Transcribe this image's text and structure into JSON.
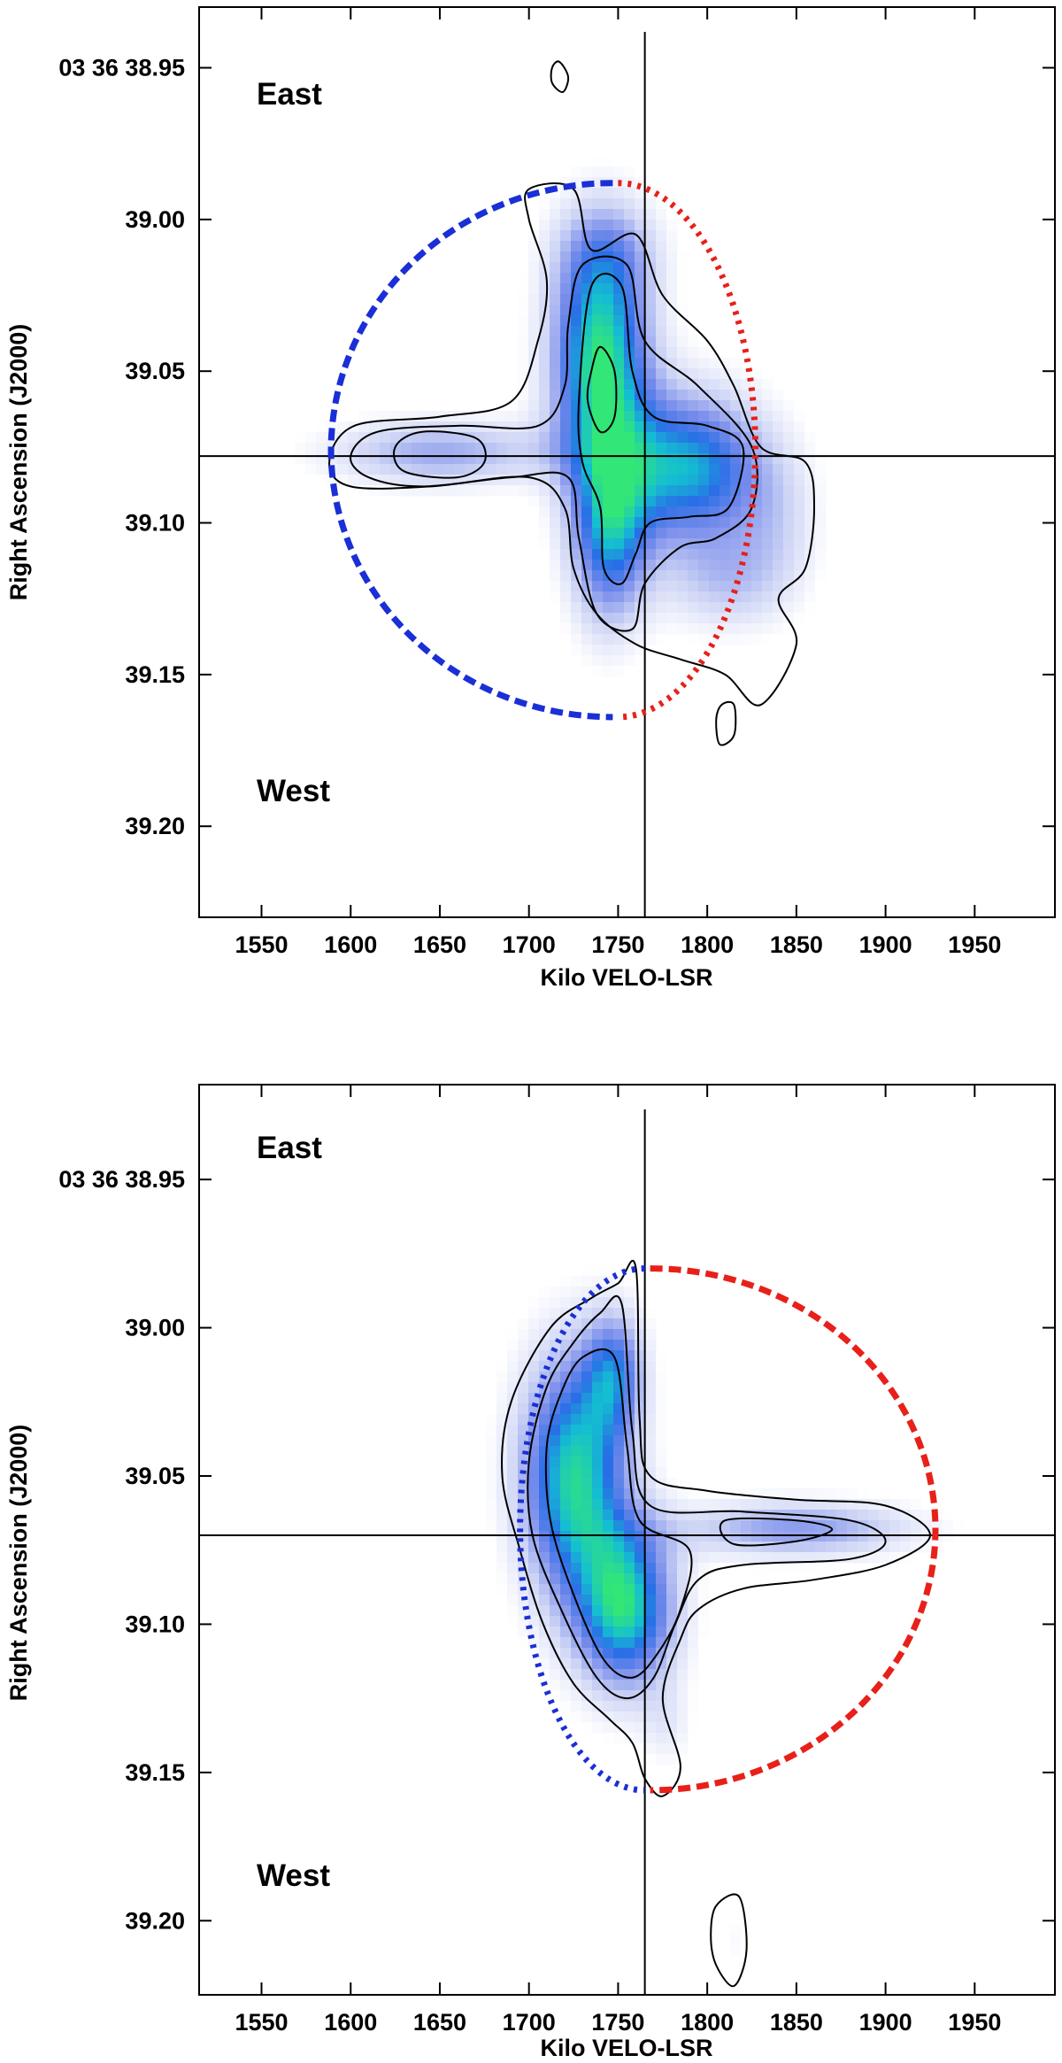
{
  "chart_data": [
    {
      "type": "heatmap",
      "panel": "top",
      "xlabel": "Kilo VELO-LSR",
      "ylabel": "Right Ascension (J2000)",
      "xlim": [
        1515,
        1995
      ],
      "ylim": [
        39.23,
        38.93
      ],
      "x_ticks": [
        1550,
        1600,
        1650,
        1700,
        1750,
        1800,
        1850,
        1900,
        1950
      ],
      "x_tick_labels": [
        "1550",
        "1600",
        "1650",
        "1700",
        "1750",
        "1800",
        "1850",
        "1900",
        "1950"
      ],
      "y_ticks": [
        38.95,
        39.0,
        39.05,
        39.1,
        39.15,
        39.2
      ],
      "y_tick_labels": [
        "03 36 38.95",
        "39.00",
        "39.05",
        "39.10",
        "39.15",
        "39.20"
      ],
      "annotations": [
        {
          "text": "East",
          "x": 1532,
          "y": 38.952
        },
        {
          "text": "West",
          "x": 1532,
          "y": 39.188
        }
      ],
      "crosshair": {
        "x": 1765,
        "y": 39.078
      },
      "ellipse": {
        "cx": 1747,
        "cy": 39.076,
        "rx_left": 158,
        "rx_right": 77,
        "ry": 0.088,
        "left_color": "#1a2fd6",
        "right_color": "#e8201a",
        "left_style": "dashed",
        "right_style": "dotted"
      },
      "emission_blobs": [
        {
          "x": 1740,
          "y": 39.045,
          "sx": 20,
          "sy": 0.028,
          "amp": 1.0,
          "angle": 0
        },
        {
          "x": 1745,
          "y": 39.105,
          "sx": 16,
          "sy": 0.022,
          "amp": 0.7,
          "angle": 0
        },
        {
          "x": 1790,
          "y": 39.082,
          "sx": 30,
          "sy": 0.018,
          "amp": 0.85,
          "angle": 0
        },
        {
          "x": 1650,
          "y": 39.077,
          "sx": 45,
          "sy": 0.008,
          "amp": 0.45,
          "angle": 0
        },
        {
          "x": 1745,
          "y": 39.01,
          "sx": 22,
          "sy": 0.012,
          "amp": 0.25,
          "angle": 0
        },
        {
          "x": 1810,
          "y": 39.12,
          "sx": 25,
          "sy": 0.012,
          "amp": 0.3,
          "angle": 0
        },
        {
          "x": 1840,
          "y": 39.1,
          "sx": 18,
          "sy": 0.018,
          "amp": 0.2,
          "angle": 0
        }
      ],
      "contours": [
        {
          "level": 1,
          "points": [
            [
              1700,
              39.0
            ],
            [
              1700,
              38.99
            ],
            [
              1725,
              38.99
            ],
            [
              1735,
              39.01
            ],
            [
              1760,
              39.005
            ],
            [
              1775,
              39.025
            ],
            [
              1800,
              39.04
            ],
            [
              1815,
              39.055
            ],
            [
              1830,
              39.075
            ],
            [
              1855,
              39.08
            ],
            [
              1860,
              39.095
            ],
            [
              1855,
              39.115
            ],
            [
              1840,
              39.125
            ],
            [
              1850,
              39.14
            ],
            [
              1830,
              39.16
            ],
            [
              1810,
              39.15
            ],
            [
              1785,
              39.145
            ],
            [
              1760,
              39.14
            ],
            [
              1738,
              39.13
            ],
            [
              1725,
              39.115
            ],
            [
              1720,
              39.095
            ],
            [
              1700,
              39.085
            ],
            [
              1645,
              39.088
            ],
            [
              1600,
              39.088
            ],
            [
              1588,
              39.08
            ],
            [
              1602,
              39.068
            ],
            [
              1650,
              39.065
            ],
            [
              1690,
              39.06
            ],
            [
              1705,
              39.04
            ],
            [
              1710,
              39.02
            ]
          ]
        },
        {
          "level": 2,
          "points": [
            [
              1730,
              39.015
            ],
            [
              1755,
              39.015
            ],
            [
              1765,
              39.04
            ],
            [
              1795,
              39.055
            ],
            [
              1825,
              39.075
            ],
            [
              1825,
              39.095
            ],
            [
              1805,
              39.105
            ],
            [
              1785,
              39.108
            ],
            [
              1765,
              39.12
            ],
            [
              1758,
              39.135
            ],
            [
              1738,
              39.13
            ],
            [
              1728,
              39.105
            ],
            [
              1722,
              39.085
            ],
            [
              1690,
              39.085
            ],
            [
              1640,
              39.088
            ],
            [
              1610,
              39.085
            ],
            [
              1600,
              39.078
            ],
            [
              1615,
              39.07
            ],
            [
              1660,
              39.068
            ],
            [
              1705,
              39.068
            ],
            [
              1720,
              39.055
            ],
            [
              1722,
              39.035
            ]
          ]
        },
        {
          "level": 3,
          "points": [
            [
              1735,
              39.022
            ],
            [
              1752,
              39.022
            ],
            [
              1758,
              39.05
            ],
            [
              1770,
              39.065
            ],
            [
              1800,
              39.068
            ],
            [
              1820,
              39.075
            ],
            [
              1812,
              39.095
            ],
            [
              1790,
              39.098
            ],
            [
              1768,
              39.1
            ],
            [
              1760,
              39.11
            ],
            [
              1752,
              39.12
            ],
            [
              1742,
              39.115
            ],
            [
              1740,
              39.095
            ],
            [
              1730,
              39.08
            ],
            [
              1728,
              39.06
            ]
          ]
        },
        {
          "level": 3,
          "points": [
            [
              1625,
              39.075
            ],
            [
              1640,
              39.07
            ],
            [
              1670,
              39.072
            ],
            [
              1675,
              39.08
            ],
            [
              1660,
              39.085
            ],
            [
              1630,
              39.083
            ]
          ]
        },
        {
          "level": 4,
          "points": [
            [
              1740,
              39.042
            ],
            [
              1748,
              39.05
            ],
            [
              1748,
              39.065
            ],
            [
              1740,
              39.07
            ],
            [
              1733,
              39.06
            ],
            [
              1735,
              39.05
            ]
          ]
        },
        {
          "level": 1,
          "points": [
            [
              1808,
              39.16
            ],
            [
              1815,
              39.16
            ],
            [
              1815,
              39.17
            ],
            [
              1807,
              39.173
            ],
            [
              1805,
              39.165
            ]
          ]
        },
        {
          "level": 1,
          "points": [
            [
              1717,
              38.948
            ],
            [
              1722,
              38.953
            ],
            [
              1719,
              38.958
            ],
            [
              1713,
              38.955
            ],
            [
              1713,
              38.95
            ]
          ]
        }
      ]
    },
    {
      "type": "heatmap",
      "panel": "bottom",
      "xlabel": "Kilo VELO-LSR",
      "ylabel": "Right Ascension (J2000)",
      "xlim": [
        1515,
        1995
      ],
      "ylim": [
        39.225,
        38.918
      ],
      "x_ticks": [
        1550,
        1600,
        1650,
        1700,
        1750,
        1800,
        1850,
        1900,
        1950
      ],
      "x_tick_labels": [
        "1550",
        "1600",
        "1650",
        "1700",
        "1750",
        "1800",
        "1850",
        "1900",
        "1950"
      ],
      "y_ticks": [
        38.95,
        39.0,
        39.05,
        39.1,
        39.15,
        39.2
      ],
      "y_tick_labels": [
        "03 36 38.95",
        "39.00",
        "39.05",
        "39.10",
        "39.15",
        "39.20"
      ],
      "annotations": [
        {
          "text": "East",
          "x": 1532,
          "y": 38.944
        },
        {
          "text": "West",
          "x": 1532,
          "y": 39.185
        }
      ],
      "crosshair": {
        "x": 1765,
        "y": 39.07
      },
      "ellipse": {
        "cx": 1765,
        "cy": 39.068,
        "rx_left": 70,
        "rx_right": 160,
        "ry": 0.088,
        "left_color": "#1a2fd6",
        "right_color": "#e8201a",
        "left_style": "dotted",
        "right_style": "dashed"
      },
      "emission_blobs": [
        {
          "x": 1725,
          "y": 39.05,
          "sx": 22,
          "sy": 0.03,
          "amp": 0.95,
          "angle": 0
        },
        {
          "x": 1755,
          "y": 39.095,
          "sx": 20,
          "sy": 0.02,
          "amp": 0.9,
          "angle": 0
        },
        {
          "x": 1748,
          "y": 39.015,
          "sx": 12,
          "sy": 0.015,
          "amp": 0.55,
          "angle": 0
        },
        {
          "x": 1850,
          "y": 39.068,
          "sx": 48,
          "sy": 0.007,
          "amp": 0.5,
          "angle": 0
        },
        {
          "x": 1778,
          "y": 39.135,
          "sx": 10,
          "sy": 0.01,
          "amp": 0.15,
          "angle": 0
        },
        {
          "x": 1815,
          "y": 39.207,
          "sx": 6,
          "sy": 0.008,
          "amp": 0.1,
          "angle": 0
        }
      ],
      "contours": [
        {
          "level": 1,
          "points": [
            [
              1750,
              38.985
            ],
            [
              1760,
              38.98
            ],
            [
              1762,
              39.03
            ],
            [
              1768,
              39.05
            ],
            [
              1800,
              39.055
            ],
            [
              1850,
              39.058
            ],
            [
              1900,
              39.06
            ],
            [
              1925,
              39.07
            ],
            [
              1900,
              39.08
            ],
            [
              1860,
              39.085
            ],
            [
              1820,
              39.088
            ],
            [
              1795,
              39.095
            ],
            [
              1785,
              39.105
            ],
            [
              1775,
              39.125
            ],
            [
              1785,
              39.148
            ],
            [
              1775,
              39.158
            ],
            [
              1765,
              39.152
            ],
            [
              1758,
              39.14
            ],
            [
              1745,
              39.132
            ],
            [
              1725,
              39.12
            ],
            [
              1708,
              39.1
            ],
            [
              1695,
              39.075
            ],
            [
              1685,
              39.05
            ],
            [
              1690,
              39.025
            ],
            [
              1712,
              39.0
            ],
            [
              1735,
              38.99
            ]
          ]
        },
        {
          "level": 2,
          "points": [
            [
              1740,
              38.995
            ],
            [
              1752,
              38.992
            ],
            [
              1758,
              39.035
            ],
            [
              1768,
              39.06
            ],
            [
              1820,
              39.062
            ],
            [
              1880,
              39.065
            ],
            [
              1900,
              39.072
            ],
            [
              1880,
              39.078
            ],
            [
              1820,
              39.08
            ],
            [
              1795,
              39.085
            ],
            [
              1782,
              39.1
            ],
            [
              1770,
              39.118
            ],
            [
              1755,
              39.125
            ],
            [
              1738,
              39.118
            ],
            [
              1718,
              39.095
            ],
            [
              1702,
              39.07
            ],
            [
              1700,
              39.045
            ],
            [
              1710,
              39.02
            ],
            [
              1725,
              39.005
            ]
          ]
        },
        {
          "level": 3,
          "points": [
            [
              1730,
              39.01
            ],
            [
              1748,
              39.01
            ],
            [
              1755,
              39.04
            ],
            [
              1762,
              39.065
            ],
            [
              1790,
              39.075
            ],
            [
              1785,
              39.095
            ],
            [
              1772,
              39.11
            ],
            [
              1758,
              39.118
            ],
            [
              1742,
              39.112
            ],
            [
              1725,
              39.09
            ],
            [
              1712,
              39.065
            ],
            [
              1710,
              39.04
            ],
            [
              1718,
              39.022
            ]
          ]
        },
        {
          "level": 3,
          "points": [
            [
              1810,
              39.065
            ],
            [
              1850,
              39.065
            ],
            [
              1870,
              39.068
            ],
            [
              1850,
              39.072
            ],
            [
              1815,
              39.073
            ]
          ]
        },
        {
          "level": 1,
          "points": [
            [
              1805,
              39.195
            ],
            [
              1818,
              39.192
            ],
            [
              1822,
              39.21
            ],
            [
              1815,
              39.222
            ],
            [
              1805,
              39.215
            ],
            [
              1802,
              39.205
            ]
          ]
        }
      ]
    }
  ]
}
